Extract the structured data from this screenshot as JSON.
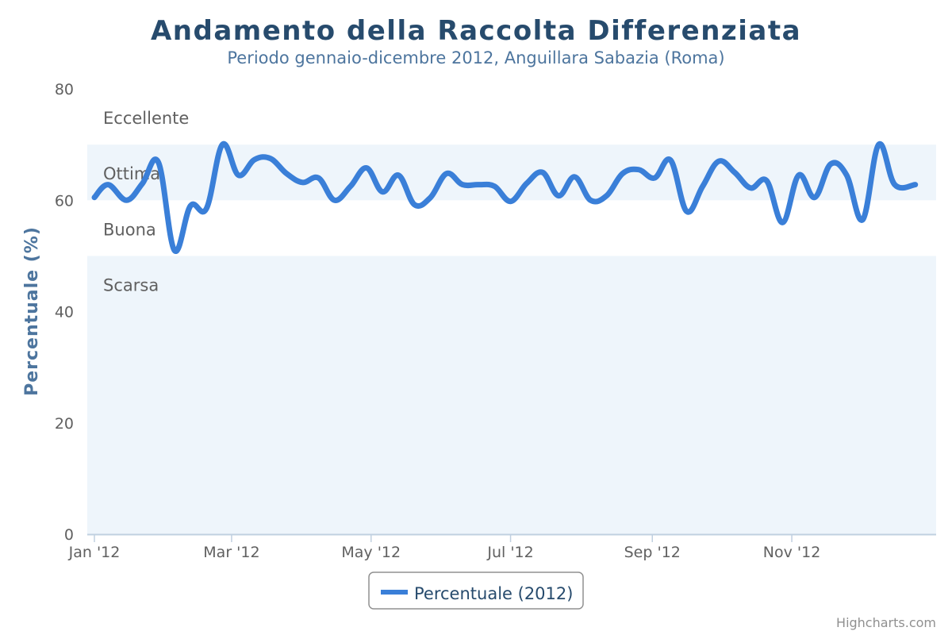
{
  "chart_data": {
    "type": "line",
    "title": "Andamento della Raccolta Differenziata",
    "subtitle": "Periodo gennaio-dicembre 2012, Anguillara Sabazia (Roma)",
    "xlabel": "",
    "ylabel": "Percentuale (%)",
    "ylim": [
      0,
      80
    ],
    "yticks": [
      0,
      20,
      40,
      60,
      80
    ],
    "xlim": [
      "2012-01-01",
      "2012-12-31"
    ],
    "xticks": [
      {
        "date": "2012-01-01",
        "label": "Jan '12"
      },
      {
        "date": "2012-03-01",
        "label": "Mar '12"
      },
      {
        "date": "2012-05-01",
        "label": "May '12"
      },
      {
        "date": "2012-07-01",
        "label": "Jul '12"
      },
      {
        "date": "2012-09-01",
        "label": "Sep '12"
      },
      {
        "date": "2012-11-01",
        "label": "Nov '12"
      }
    ],
    "plot_bands": [
      {
        "from": 0,
        "to": 50,
        "label": "Scarsa",
        "color": "#eef5fb"
      },
      {
        "from": 50,
        "to": 60,
        "label": "Buona",
        "color": "#ffffff"
      },
      {
        "from": 60,
        "to": 70,
        "label": "Ottima",
        "color": "#eef5fb"
      },
      {
        "from": 70,
        "to": 80,
        "label": "Eccellente",
        "color": "#ffffff"
      }
    ],
    "grid": false,
    "legend_position": "bottom-center",
    "series": [
      {
        "name": "Percentuale (2012)",
        "color": "#3a7fd8",
        "points": [
          [
            "2012-01-01",
            60.5
          ],
          [
            "2012-01-07",
            62.8
          ],
          [
            "2012-01-15",
            60.0
          ],
          [
            "2012-01-22",
            63.0
          ],
          [
            "2012-01-29",
            66.8
          ],
          [
            "2012-02-05",
            51.0
          ],
          [
            "2012-02-12",
            59.0
          ],
          [
            "2012-02-19",
            58.5
          ],
          [
            "2012-02-26",
            70.0
          ],
          [
            "2012-03-04",
            64.5
          ],
          [
            "2012-03-11",
            67.3
          ],
          [
            "2012-03-18",
            67.5
          ],
          [
            "2012-03-25",
            64.8
          ],
          [
            "2012-04-01",
            63.2
          ],
          [
            "2012-04-08",
            64.0
          ],
          [
            "2012-04-15",
            60.0
          ],
          [
            "2012-04-22",
            62.5
          ],
          [
            "2012-04-29",
            65.8
          ],
          [
            "2012-05-06",
            61.5
          ],
          [
            "2012-05-13",
            64.5
          ],
          [
            "2012-05-20",
            59.2
          ],
          [
            "2012-05-27",
            60.5
          ],
          [
            "2012-06-03",
            64.8
          ],
          [
            "2012-06-10",
            62.8
          ],
          [
            "2012-06-17",
            62.8
          ],
          [
            "2012-06-24",
            62.5
          ],
          [
            "2012-07-01",
            59.8
          ],
          [
            "2012-07-08",
            63.0
          ],
          [
            "2012-07-15",
            65.0
          ],
          [
            "2012-07-22",
            60.8
          ],
          [
            "2012-07-29",
            64.2
          ],
          [
            "2012-08-05",
            60.0
          ],
          [
            "2012-08-12",
            60.8
          ],
          [
            "2012-08-19",
            64.8
          ],
          [
            "2012-08-26",
            65.5
          ],
          [
            "2012-09-02",
            64.0
          ],
          [
            "2012-09-09",
            67.2
          ],
          [
            "2012-09-16",
            58.0
          ],
          [
            "2012-09-23",
            62.5
          ],
          [
            "2012-09-30",
            67.0
          ],
          [
            "2012-10-07",
            65.0
          ],
          [
            "2012-10-14",
            62.2
          ],
          [
            "2012-10-21",
            63.5
          ],
          [
            "2012-10-28",
            56.0
          ],
          [
            "2012-11-04",
            64.5
          ],
          [
            "2012-11-11",
            60.5
          ],
          [
            "2012-11-18",
            66.5
          ],
          [
            "2012-11-25",
            64.5
          ],
          [
            "2012-12-02",
            56.5
          ],
          [
            "2012-12-09",
            70.0
          ],
          [
            "2012-12-16",
            62.8
          ],
          [
            "2012-12-25",
            62.8
          ]
        ]
      }
    ]
  },
  "credits": "Highcharts.com"
}
